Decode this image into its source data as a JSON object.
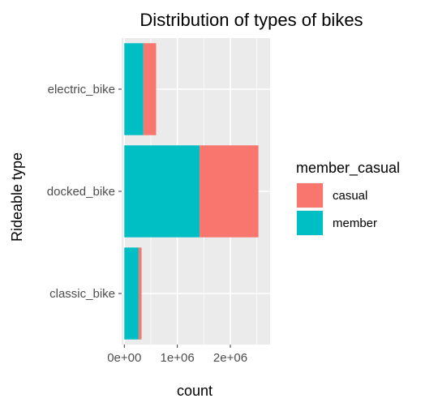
{
  "chart_data": {
    "type": "bar",
    "orientation": "horizontal",
    "stacked": true,
    "title": "Distribution of types of bikes",
    "xlabel": "count",
    "ylabel": "Rideable type",
    "categories": [
      "classic_bike",
      "docked_bike",
      "electric_bike"
    ],
    "series": [
      {
        "name": "member",
        "color": "#00BFC4",
        "values": [
          270000,
          1420000,
          360000
        ]
      },
      {
        "name": "casual",
        "color": "#F8766D",
        "values": [
          55000,
          1110000,
          240000
        ]
      }
    ],
    "xlim": [
      -50000,
      2750000
    ],
    "x_ticks": [
      0,
      1000000,
      2000000
    ],
    "x_tick_labels": [
      "0e+00",
      "1e+06",
      "2e+06"
    ],
    "x_minor_ticks": [
      500000,
      1500000,
      2500000
    ],
    "legend": {
      "title": "member_casual",
      "position": "right",
      "entries": [
        {
          "label": "casual",
          "color": "#F8766D"
        },
        {
          "label": "member",
          "color": "#00BFC4"
        }
      ]
    },
    "grid": true,
    "panel_background": "#EBEBEB"
  }
}
